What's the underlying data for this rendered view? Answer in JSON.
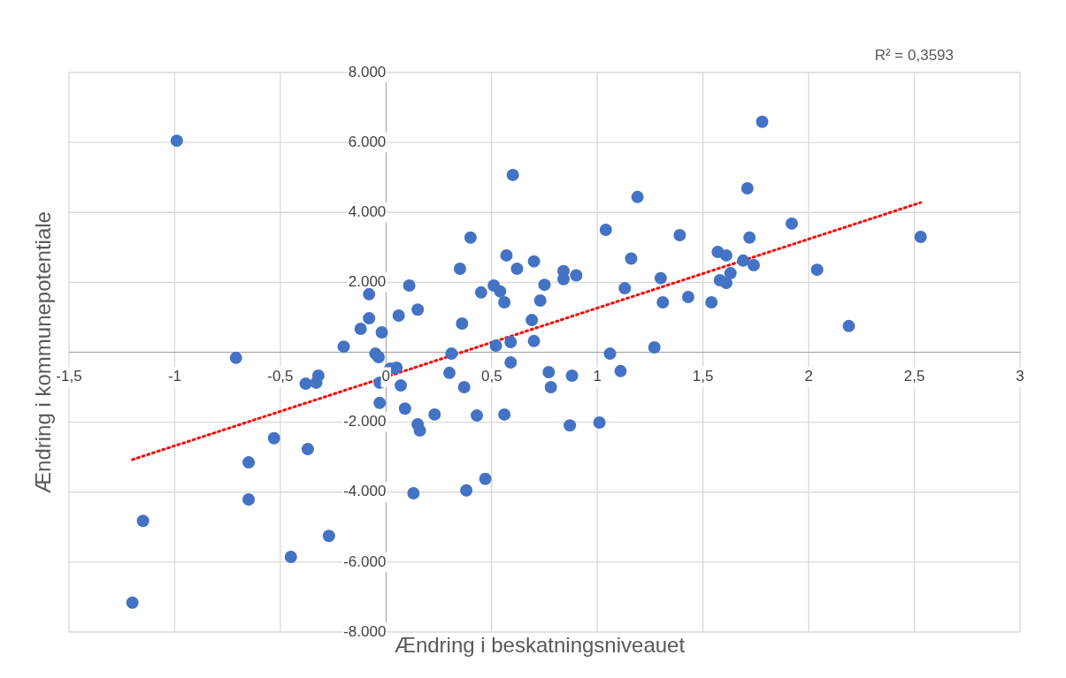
{
  "chart_data": {
    "type": "scatter",
    "xlabel": "Ændring i beskatningsniveauet",
    "ylabel": "Ændring i kommunepotentiale",
    "annotations": [
      "R² = 0,3593"
    ],
    "xlim": [
      -1.5,
      3
    ],
    "xticks": [
      {
        "value": -1.5,
        "label": "-1,5"
      },
      -1,
      {
        "value": -0.5,
        "label": "-0,5"
      },
      0,
      {
        "value": 0.5,
        "label": "0,5"
      },
      1,
      {
        "value": 1.5,
        "label": "1,5"
      },
      2,
      {
        "value": 2.5,
        "label": "2,5"
      },
      3
    ],
    "ylim": [
      -8000,
      8000
    ],
    "yticks": [
      {
        "value": -8000,
        "label": "-8.000"
      },
      {
        "value": -6000,
        "label": "-6.000"
      },
      {
        "value": -4000,
        "label": "-4.000"
      },
      {
        "value": -2000,
        "label": "-2.000"
      },
      {
        "value": 0,
        "label": null
      },
      {
        "value": 2000,
        "label": "2.000"
      },
      {
        "value": 4000,
        "label": "4.000"
      },
      {
        "value": 6000,
        "label": "6.000"
      },
      {
        "value": 8000,
        "label": "8.000"
      }
    ],
    "grid": true,
    "legend": false,
    "marker": "circle",
    "series": [
      {
        "color": "#4472c4",
        "x": [
          -0.99,
          -0.71,
          -1.2,
          -1.15,
          -0.65,
          -0.65,
          -0.53,
          -0.45,
          -0.37,
          -0.38,
          -0.33,
          -0.32,
          -0.27,
          -0.2,
          -0.12,
          -0.08,
          -0.08,
          -0.05,
          -0.035,
          -0.02,
          -0.03,
          -0.03,
          0.02,
          0.05,
          0.07,
          0.06,
          0.11,
          0.09,
          0.15,
          0.15,
          0.16,
          0.13,
          0.23,
          0.3,
          0.31,
          0.35,
          0.36,
          0.37,
          0.38,
          0.4,
          0.43,
          0.45,
          0.47,
          0.51,
          0.52,
          0.54,
          0.56,
          0.57,
          0.56,
          0.59,
          0.59,
          0.6,
          0.62,
          0.73,
          0.69,
          0.7,
          0.7,
          0.75,
          0.77,
          0.78,
          0.84,
          0.84,
          0.87,
          0.88,
          0.9,
          1.01,
          1.04,
          1.06,
          1.11,
          1.13,
          1.16,
          1.19,
          1.27,
          1.3,
          1.31,
          1.39,
          1.43,
          1.54,
          1.57,
          1.58,
          1.61,
          1.61,
          1.63,
          1.69,
          1.71,
          1.72,
          1.74,
          1.78,
          1.92,
          2.04,
          2.19,
          2.53
        ],
        "values": [
          6050,
          -160,
          -7160,
          -4820,
          -3150,
          -4210,
          -2460,
          -5850,
          -2770,
          -900,
          -870,
          -670,
          -5250,
          160,
          670,
          1660,
          970,
          -40,
          -140,
          570,
          -870,
          -1450,
          -470,
          -440,
          -950,
          1050,
          1910,
          -1610,
          1220,
          -2060,
          -2240,
          -4030,
          -1780,
          -590,
          -40,
          2390,
          820,
          -1000,
          -3950,
          3280,
          -1810,
          1710,
          -3620,
          1910,
          190,
          1740,
          1430,
          2770,
          -1780,
          290,
          -290,
          5070,
          2390,
          1480,
          920,
          320,
          2600,
          1930,
          -570,
          -1000,
          2320,
          2090,
          -2090,
          -670,
          2200,
          -2010,
          3500,
          -40,
          -540,
          1830,
          2680,
          4440,
          140,
          2120,
          1430,
          3350,
          1580,
          1430,
          2870,
          2060,
          1980,
          2770,
          2260,
          2620,
          4690,
          3280,
          2490,
          6590,
          3680,
          2360,
          750,
          3300
        ]
      },
      {
        "type": "line",
        "color": "#ff0000",
        "line_style": "dotted",
        "marker": "none",
        "x": [
          -1.2,
          2.53
        ],
        "values": [
          -3070,
          4280
        ]
      }
    ]
  }
}
